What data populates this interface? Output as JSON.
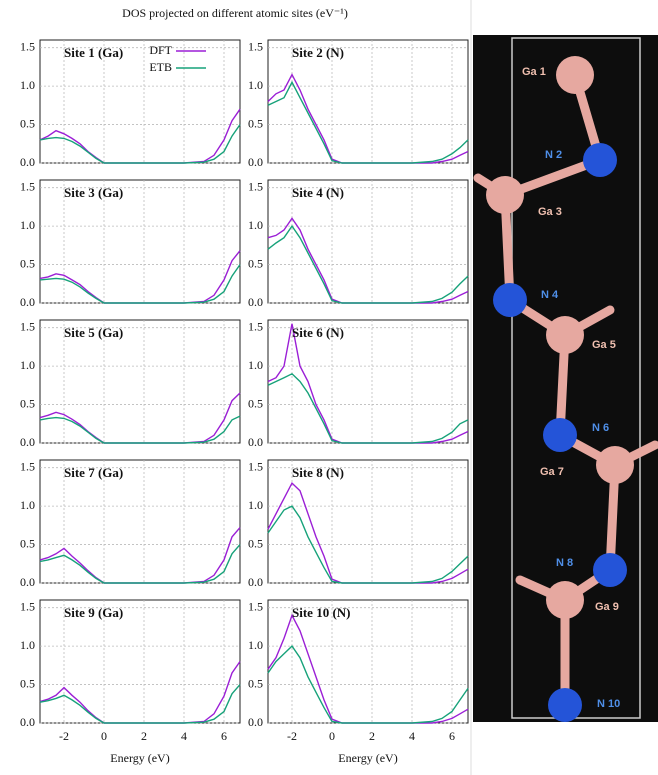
{
  "figure_title": "DOS projected on different atomic sites (eV⁻¹)",
  "structure": {
    "labels": [
      "Ga 1",
      "N 2",
      "Ga 3",
      "N 4",
      "Ga 5",
      "N 6",
      "Ga 7",
      "N 8",
      "Ga 9",
      "N 10"
    ]
  },
  "chart_data": [
    {
      "type": "line",
      "title": "Site 1 (Ga)",
      "legend": "upper center",
      "x": [
        -3.2,
        -2.8,
        -2.4,
        -2,
        -1.6,
        -1.2,
        -0.8,
        -0.4,
        0,
        0.5,
        1,
        2,
        3,
        4,
        5,
        5.5,
        6,
        6.4,
        6.8
      ],
      "xlim": [
        -3.2,
        6.8
      ],
      "ylim": [
        0,
        1.6
      ],
      "xticks": [
        -2,
        0,
        2,
        4,
        6
      ],
      "yticks": [
        {
          "value": 0,
          "label": "0.0"
        },
        0.5,
        {
          "value": 1,
          "label": "1.0"
        },
        1.5
      ],
      "grid": true,
      "series": [
        {
          "name": "DFT",
          "color": "#9b1fd6",
          "values": [
            0.3,
            0.35,
            0.42,
            0.38,
            0.32,
            0.25,
            0.15,
            0.07,
            0,
            0,
            0,
            0,
            0,
            0,
            0.02,
            0.1,
            0.3,
            0.55,
            0.7
          ]
        },
        {
          "name": "ETB",
          "color": "#17a27a",
          "values": [
            0.3,
            0.32,
            0.33,
            0.32,
            0.28,
            0.22,
            0.14,
            0.06,
            0,
            0,
            0,
            0,
            0,
            0,
            0.01,
            0.05,
            0.15,
            0.35,
            0.5
          ]
        }
      ]
    },
    {
      "type": "line",
      "title": "Site 2 (N)",
      "x": [
        -3.2,
        -2.8,
        -2.4,
        -2,
        -1.6,
        -1.2,
        -0.8,
        -0.4,
        0,
        0.5,
        1,
        2,
        3,
        4,
        5,
        5.5,
        6,
        6.4,
        6.8
      ],
      "xlim": [
        -3.2,
        6.8
      ],
      "ylim": [
        0,
        1.6
      ],
      "xticks": [
        -2,
        0,
        2,
        4,
        6
      ],
      "yticks": [
        {
          "value": 0,
          "label": "0.0"
        },
        0.5,
        {
          "value": 1,
          "label": "1.0"
        },
        1.5
      ],
      "grid": true,
      "series": [
        {
          "color": "#9b1fd6",
          "values": [
            0.8,
            0.9,
            0.95,
            1.15,
            0.95,
            0.7,
            0.5,
            0.3,
            0.05,
            0,
            0,
            0,
            0,
            0,
            0,
            0.02,
            0.05,
            0.1,
            0.15
          ]
        },
        {
          "color": "#17a27a",
          "values": [
            0.75,
            0.8,
            0.85,
            1.05,
            0.85,
            0.65,
            0.45,
            0.25,
            0.03,
            0,
            0,
            0,
            0,
            0,
            0.02,
            0.05,
            0.12,
            0.2,
            0.3
          ]
        }
      ]
    },
    {
      "type": "line",
      "title": "Site 3 (Ga)",
      "x": [
        -3.2,
        -2.8,
        -2.4,
        -2,
        -1.6,
        -1.2,
        -0.8,
        -0.4,
        0,
        0.5,
        1,
        2,
        3,
        4,
        5,
        5.5,
        6,
        6.4,
        6.8
      ],
      "xlim": [
        -3.2,
        6.8
      ],
      "ylim": [
        0,
        1.6
      ],
      "xticks": [
        -2,
        0,
        2,
        4,
        6
      ],
      "yticks": [
        {
          "value": 0,
          "label": "0.0"
        },
        0.5,
        {
          "value": 1,
          "label": "1.0"
        },
        1.5
      ],
      "grid": true,
      "series": [
        {
          "color": "#9b1fd6",
          "values": [
            0.32,
            0.34,
            0.38,
            0.36,
            0.3,
            0.24,
            0.15,
            0.07,
            0,
            0,
            0,
            0,
            0,
            0,
            0.02,
            0.1,
            0.3,
            0.55,
            0.68
          ]
        },
        {
          "color": "#17a27a",
          "values": [
            0.3,
            0.31,
            0.32,
            0.31,
            0.27,
            0.21,
            0.13,
            0.06,
            0,
            0,
            0,
            0,
            0,
            0,
            0.01,
            0.05,
            0.15,
            0.35,
            0.5
          ]
        }
      ]
    },
    {
      "type": "line",
      "title": "Site 4 (N)",
      "x": [
        -3.2,
        -2.8,
        -2.4,
        -2,
        -1.6,
        -1.2,
        -0.8,
        -0.4,
        0,
        0.5,
        1,
        2,
        3,
        4,
        5,
        5.5,
        6,
        6.4,
        6.8
      ],
      "xlim": [
        -3.2,
        6.8
      ],
      "ylim": [
        0,
        1.6
      ],
      "xticks": [
        -2,
        0,
        2,
        4,
        6
      ],
      "yticks": [
        {
          "value": 0,
          "label": "0.0"
        },
        0.5,
        {
          "value": 1,
          "label": "1.0"
        },
        1.5
      ],
      "grid": true,
      "series": [
        {
          "color": "#9b1fd6",
          "values": [
            0.85,
            0.88,
            0.95,
            1.1,
            0.95,
            0.7,
            0.5,
            0.3,
            0.05,
            0,
            0,
            0,
            0,
            0,
            0,
            0.02,
            0.05,
            0.1,
            0.15
          ]
        },
        {
          "color": "#17a27a",
          "values": [
            0.7,
            0.78,
            0.85,
            1.0,
            0.85,
            0.65,
            0.45,
            0.25,
            0.03,
            0,
            0,
            0,
            0,
            0,
            0.02,
            0.06,
            0.14,
            0.25,
            0.35
          ]
        }
      ]
    },
    {
      "type": "line",
      "title": "Site 5 (Ga)",
      "x": [
        -3.2,
        -2.8,
        -2.4,
        -2,
        -1.6,
        -1.2,
        -0.8,
        -0.4,
        0,
        0.5,
        1,
        2,
        3,
        4,
        5,
        5.5,
        6,
        6.4,
        6.8
      ],
      "xlim": [
        -3.2,
        6.8
      ],
      "ylim": [
        0,
        1.6
      ],
      "xticks": [
        -2,
        0,
        2,
        4,
        6
      ],
      "yticks": [
        {
          "value": 0,
          "label": "0.0"
        },
        0.5,
        {
          "value": 1,
          "label": "1.0"
        },
        1.5
      ],
      "grid": true,
      "series": [
        {
          "color": "#9b1fd6",
          "values": [
            0.33,
            0.36,
            0.4,
            0.37,
            0.31,
            0.24,
            0.15,
            0.07,
            0,
            0,
            0,
            0,
            0,
            0,
            0.02,
            0.1,
            0.3,
            0.55,
            0.65
          ]
        },
        {
          "color": "#17a27a",
          "values": [
            0.3,
            0.32,
            0.33,
            0.32,
            0.28,
            0.22,
            0.14,
            0.06,
            0,
            0,
            0,
            0,
            0,
            0,
            0.01,
            0.05,
            0.15,
            0.3,
            0.35
          ]
        }
      ]
    },
    {
      "type": "line",
      "title": "Site 6 (N)",
      "x": [
        -3.2,
        -2.8,
        -2.4,
        -2,
        -1.6,
        -1.2,
        -0.8,
        -0.4,
        0,
        0.5,
        1,
        2,
        3,
        4,
        5,
        5.5,
        6,
        6.4,
        6.8
      ],
      "xlim": [
        -3.2,
        6.8
      ],
      "ylim": [
        0,
        1.6
      ],
      "xticks": [
        -2,
        0,
        2,
        4,
        6
      ],
      "yticks": [
        {
          "value": 0,
          "label": "0.0"
        },
        0.5,
        {
          "value": 1,
          "label": "1.0"
        },
        1.5
      ],
      "grid": true,
      "series": [
        {
          "color": "#9b1fd6",
          "values": [
            0.8,
            0.85,
            1.0,
            1.55,
            1.0,
            0.8,
            0.5,
            0.3,
            0.05,
            0,
            0,
            0,
            0,
            0,
            0,
            0.02,
            0.05,
            0.1,
            0.15
          ]
        },
        {
          "color": "#17a27a",
          "values": [
            0.75,
            0.8,
            0.85,
            0.9,
            0.8,
            0.65,
            0.45,
            0.25,
            0.03,
            0,
            0,
            0,
            0,
            0,
            0.02,
            0.06,
            0.14,
            0.25,
            0.3
          ]
        }
      ]
    },
    {
      "type": "line",
      "title": "Site 7 (Ga)",
      "x": [
        -3.2,
        -2.8,
        -2.4,
        -2,
        -1.6,
        -1.2,
        -0.8,
        -0.4,
        0,
        0.5,
        1,
        2,
        3,
        4,
        5,
        5.5,
        6,
        6.4,
        6.8
      ],
      "xlim": [
        -3.2,
        6.8
      ],
      "ylim": [
        0,
        1.6
      ],
      "xticks": [
        -2,
        0,
        2,
        4,
        6
      ],
      "yticks": [
        {
          "value": 0,
          "label": "0.0"
        },
        0.5,
        {
          "value": 1,
          "label": "1.0"
        },
        1.5
      ],
      "grid": true,
      "series": [
        {
          "color": "#9b1fd6",
          "values": [
            0.3,
            0.33,
            0.38,
            0.45,
            0.35,
            0.26,
            0.16,
            0.07,
            0,
            0,
            0,
            0,
            0,
            0,
            0.02,
            0.1,
            0.3,
            0.6,
            0.72
          ]
        },
        {
          "color": "#17a27a",
          "values": [
            0.28,
            0.3,
            0.33,
            0.36,
            0.3,
            0.23,
            0.14,
            0.06,
            0,
            0,
            0,
            0,
            0,
            0,
            0.01,
            0.05,
            0.15,
            0.38,
            0.5
          ]
        }
      ]
    },
    {
      "type": "line",
      "title": "Site 8 (N)",
      "x": [
        -3.2,
        -2.8,
        -2.4,
        -2,
        -1.6,
        -1.2,
        -0.8,
        -0.4,
        0,
        0.5,
        1,
        2,
        3,
        4,
        5,
        5.5,
        6,
        6.4,
        6.8
      ],
      "xlim": [
        -3.2,
        6.8
      ],
      "ylim": [
        0,
        1.6
      ],
      "xticks": [
        -2,
        0,
        2,
        4,
        6
      ],
      "yticks": [
        {
          "value": 0,
          "label": "0.0"
        },
        0.5,
        {
          "value": 1,
          "label": "1.0"
        },
        1.5
      ],
      "grid": true,
      "series": [
        {
          "color": "#9b1fd6",
          "values": [
            0.7,
            0.9,
            1.1,
            1.3,
            1.2,
            0.9,
            0.6,
            0.35,
            0.05,
            0,
            0,
            0,
            0,
            0,
            0,
            0.02,
            0.06,
            0.12,
            0.18
          ]
        },
        {
          "color": "#17a27a",
          "values": [
            0.65,
            0.8,
            0.95,
            1.0,
            0.85,
            0.6,
            0.4,
            0.2,
            0.02,
            0,
            0,
            0,
            0,
            0,
            0.02,
            0.06,
            0.15,
            0.25,
            0.35
          ]
        }
      ]
    },
    {
      "type": "line",
      "title": "Site 9 (Ga)",
      "x": [
        -3.2,
        -2.8,
        -2.4,
        -2,
        -1.6,
        -1.2,
        -0.8,
        -0.4,
        0,
        0.5,
        1,
        2,
        3,
        4,
        5,
        5.5,
        6,
        6.4,
        6.8
      ],
      "xlim": [
        -3.2,
        6.8
      ],
      "ylim": [
        0,
        1.6
      ],
      "xticks": [
        -2,
        0,
        2,
        4,
        6
      ],
      "yticks": [
        {
          "value": 0,
          "label": "0.0"
        },
        0.5,
        {
          "value": 1,
          "label": "1.0"
        },
        1.5
      ],
      "grid": true,
      "series": [
        {
          "color": "#9b1fd6",
          "values": [
            0.28,
            0.31,
            0.36,
            0.46,
            0.36,
            0.27,
            0.16,
            0.07,
            0,
            0,
            0,
            0,
            0,
            0,
            0.02,
            0.12,
            0.35,
            0.65,
            0.8
          ]
        },
        {
          "color": "#17a27a",
          "values": [
            0.27,
            0.29,
            0.32,
            0.36,
            0.3,
            0.23,
            0.14,
            0.06,
            0,
            0,
            0,
            0,
            0,
            0,
            0.01,
            0.05,
            0.15,
            0.38,
            0.5
          ]
        }
      ]
    },
    {
      "type": "line",
      "title": "Site 10 (N)",
      "x_label": "Energy (eV)",
      "x": [
        -3.2,
        -2.8,
        -2.4,
        -2,
        -1.6,
        -1.2,
        -0.8,
        -0.4,
        0,
        0.5,
        1,
        2,
        3,
        4,
        5,
        5.5,
        6,
        6.4,
        6.8
      ],
      "xlim": [
        -3.2,
        6.8
      ],
      "ylim": [
        0,
        1.6
      ],
      "xticks": [
        -2,
        0,
        2,
        4,
        6
      ],
      "yticks": [
        {
          "value": 0,
          "label": "0.0"
        },
        0.5,
        {
          "value": 1,
          "label": "1.0"
        },
        1.5
      ],
      "grid": true,
      "series": [
        {
          "color": "#9b1fd6",
          "values": [
            0.7,
            0.85,
            1.1,
            1.4,
            1.2,
            0.9,
            0.6,
            0.3,
            0.05,
            0,
            0,
            0,
            0,
            0,
            0,
            0.02,
            0.06,
            0.12,
            0.18
          ]
        },
        {
          "color": "#17a27a",
          "values": [
            0.65,
            0.8,
            0.9,
            1.0,
            0.85,
            0.6,
            0.4,
            0.2,
            0.02,
            0,
            0,
            0,
            0,
            0,
            0.02,
            0.06,
            0.15,
            0.3,
            0.45
          ]
        }
      ]
    }
  ]
}
